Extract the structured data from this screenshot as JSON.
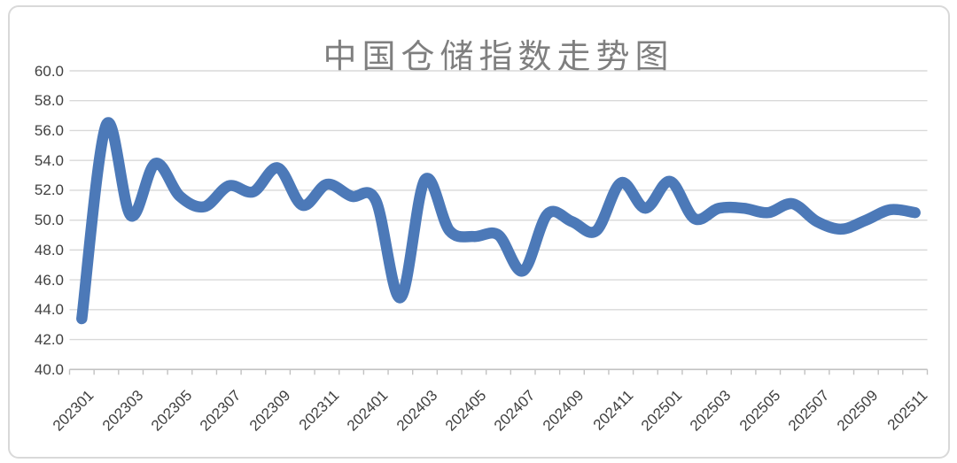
{
  "chart_data": {
    "type": "line",
    "title": "中国仓储指数走势图",
    "xlabel": "",
    "ylabel": "",
    "x": [
      "202301",
      "202302",
      "202303",
      "202304",
      "202305",
      "202306",
      "202307",
      "202308",
      "202309",
      "202310",
      "202311",
      "202312",
      "202401",
      "202402",
      "202403",
      "202404",
      "202405",
      "202406",
      "202407",
      "202408",
      "202409",
      "202410",
      "202411",
      "202412",
      "202501",
      "202502",
      "202503",
      "202504",
      "202505",
      "202506",
      "202507",
      "202508",
      "202509",
      "202510",
      "202511"
    ],
    "values": [
      43.4,
      56.4,
      50.3,
      53.8,
      51.6,
      50.9,
      52.3,
      51.9,
      53.5,
      51.0,
      52.4,
      51.6,
      51.3,
      44.8,
      52.7,
      49.3,
      48.9,
      49.0,
      46.6,
      50.4,
      49.9,
      49.3,
      52.5,
      50.8,
      52.6,
      50.1,
      50.8,
      50.8,
      50.5,
      51.1,
      49.9,
      49.4,
      50.0,
      50.7,
      50.5
    ],
    "x_tick_labels": [
      "202301",
      "202303",
      "202305",
      "202307",
      "202309",
      "202311",
      "202401",
      "202403",
      "202405",
      "202407",
      "202409",
      "202411",
      "202501",
      "202503",
      "202505",
      "202507",
      "202509",
      "202511"
    ],
    "ylim": [
      40,
      60
    ],
    "ytick_step": 2,
    "ytick_labels": [
      "60.0",
      "58.0",
      "56.0",
      "54.0",
      "52.0",
      "50.0",
      "48.0",
      "46.0",
      "44.0",
      "42.0",
      "40.0"
    ],
    "grid": "horizontal",
    "legend": "none",
    "line_smoothing": true
  },
  "style": {
    "line_color": "#4C79B8",
    "gridline_color": "#D9D9D9",
    "axis_line_color": "#C2C2C2",
    "tick_color": "#C2C2C2",
    "title_color": "#7F7F7F",
    "axis_label_color": "#404040",
    "border_color": "#D9D9D9",
    "background": "#FFFFFF"
  }
}
